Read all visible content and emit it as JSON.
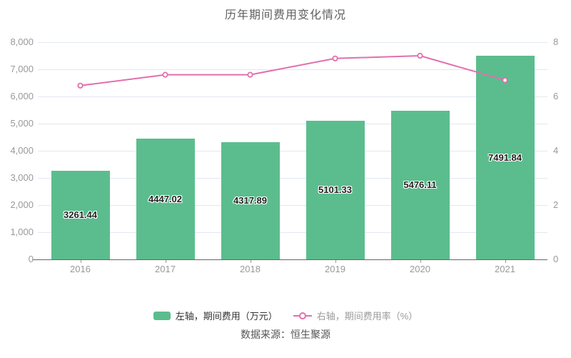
{
  "title": "历年期间费用变化情况",
  "source": "数据来源：恒生聚源",
  "legend": [
    {
      "label": "左轴，期间费用（万元）",
      "color": "#5bbd8d"
    },
    {
      "label": "右轴，期间费用率（%）",
      "color": "#e26fad"
    }
  ],
  "chart_data": {
    "type": "bar",
    "title": "历年期间费用变化情况",
    "categories": [
      "2016",
      "2017",
      "2018",
      "2019",
      "2020",
      "2021"
    ],
    "series": [
      {
        "name": "左轴，期间费用（万元）",
        "type": "bar",
        "axis": "left",
        "color": "#5bbd8d",
        "values": [
          3261.44,
          4447.02,
          4317.89,
          5101.33,
          5476.11,
          7491.84
        ],
        "data_labels": [
          "3261.44",
          "4447.02",
          "4317.89",
          "5101.33",
          "5476.11",
          "7491.84"
        ]
      },
      {
        "name": "右轴，期间费用率（%）",
        "type": "line",
        "axis": "right",
        "color": "#e26fad",
        "marker_fill": "#ffffff",
        "values": [
          6.4,
          6.8,
          6.8,
          7.4,
          7.5,
          6.6
        ]
      }
    ],
    "left_axis": {
      "min": 0,
      "max": 8000,
      "tick_interval": 1000,
      "labels": [
        "8,000",
        "7,000",
        "6,000",
        "5,000",
        "4,000",
        "3,000",
        "2,000",
        "1,000",
        "0"
      ]
    },
    "right_axis": {
      "min": 0,
      "max": 8,
      "label_interval": 2,
      "labels": [
        "8",
        "6",
        "4",
        "2",
        "0"
      ]
    },
    "grid": true,
    "legend_position": "bottom"
  }
}
